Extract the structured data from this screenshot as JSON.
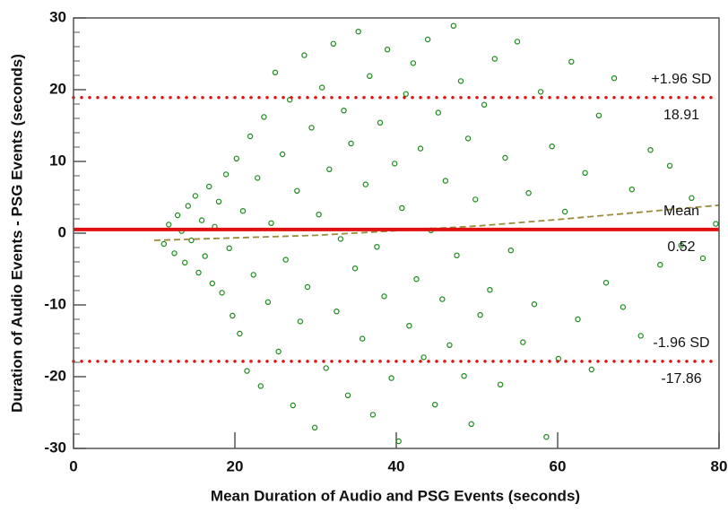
{
  "chart_data": {
    "type": "scatter",
    "xlabel": "Mean Duration of Audio and PSG Events (seconds)",
    "ylabel": "Duration of Audio Events - PSG Events (seconds)",
    "xlim": [
      0,
      80
    ],
    "ylim": [
      -30,
      30
    ],
    "xticks": [
      0,
      20,
      40,
      60,
      80
    ],
    "yticks": [
      -30,
      -20,
      -10,
      0,
      10,
      20,
      30
    ],
    "color": "#1a8a1a",
    "x": [
      11.2,
      11.8,
      12.5,
      12.9,
      13.4,
      13.8,
      14.2,
      14.6,
      15.1,
      15.5,
      15.9,
      16.3,
      16.8,
      17.2,
      17.5,
      18.0,
      18.4,
      18.9,
      19.3,
      19.7,
      20.2,
      20.6,
      21.0,
      21.5,
      21.9,
      22.3,
      22.8,
      23.2,
      23.6,
      24.1,
      24.5,
      25.0,
      25.4,
      25.9,
      26.3,
      26.8,
      27.2,
      27.7,
      28.1,
      28.6,
      29.0,
      29.5,
      29.9,
      30.4,
      30.8,
      31.3,
      31.7,
      32.2,
      32.6,
      33.1,
      33.5,
      34.0,
      34.4,
      34.9,
      35.3,
      35.8,
      36.2,
      36.7,
      37.1,
      37.6,
      38.0,
      38.5,
      38.9,
      39.4,
      39.8,
      40.3,
      40.7,
      41.2,
      41.6,
      42.1,
      42.5,
      43.0,
      43.4,
      43.9,
      44.3,
      44.8,
      45.2,
      45.7,
      46.1,
      46.6,
      47.1,
      47.5,
      48.0,
      48.4,
      48.9,
      49.3,
      49.8,
      50.4,
      50.9,
      51.6,
      52.2,
      52.9,
      53.5,
      54.2,
      55.0,
      55.7,
      56.4,
      57.1,
      57.9,
      58.6,
      59.3,
      60.1,
      60.9,
      61.7,
      62.5,
      63.4,
      64.2,
      65.1,
      66.0,
      67.0,
      68.1,
      69.2,
      70.3,
      71.5,
      72.7,
      73.9,
      75.3,
      76.6,
      78.0,
      79.6
    ],
    "values": [
      -1.5,
      1.2,
      -2.8,
      2.5,
      0.3,
      -4.1,
      3.8,
      -1.0,
      5.2,
      -5.5,
      1.8,
      -3.2,
      6.5,
      -7.0,
      0.9,
      4.4,
      -8.3,
      8.2,
      -2.1,
      -11.5,
      10.4,
      -14.0,
      3.1,
      -19.2,
      13.5,
      -5.8,
      7.7,
      -21.3,
      16.2,
      -9.6,
      1.4,
      22.4,
      -16.5,
      11.0,
      -3.7,
      18.6,
      -24.0,
      5.9,
      -12.3,
      24.8,
      -7.5,
      14.7,
      -27.1,
      2.6,
      20.3,
      -18.8,
      8.9,
      26.4,
      -10.9,
      -0.8,
      17.1,
      -22.6,
      12.5,
      -4.9,
      28.1,
      -14.7,
      6.8,
      21.9,
      -25.3,
      -1.9,
      15.4,
      -8.8,
      25.6,
      -20.2,
      9.7,
      -29.0,
      3.5,
      19.4,
      -12.9,
      23.7,
      -6.4,
      11.8,
      -17.3,
      27.0,
      0.4,
      -23.9,
      16.8,
      -9.2,
      7.3,
      -15.6,
      28.9,
      -3.1,
      21.2,
      -19.9,
      13.2,
      -26.6,
      4.7,
      -11.4,
      17.9,
      -7.9,
      24.3,
      -21.1,
      10.5,
      -2.4,
      26.7,
      -15.2,
      5.6,
      -9.9,
      19.7,
      -28.4,
      12.1,
      -17.5,
      3.0,
      23.9,
      -12.0,
      8.4,
      -19.0,
      16.4,
      -6.9,
      21.6,
      -10.3,
      6.1,
      -14.3,
      11.6,
      -4.4,
      9.4,
      -1.7,
      4.9,
      -3.5,
      1.3
    ],
    "trend": {
      "color": "#9a8a3a",
      "x": [
        10,
        30,
        50,
        60,
        70,
        80
      ],
      "values": [
        -1.0,
        -0.3,
        1.0,
        1.9,
        2.9,
        3.9
      ]
    },
    "reference_lines": [
      {
        "label": "+1.96 SD",
        "value": 18.91,
        "color": "#e01010",
        "style": "dotted"
      },
      {
        "label": "Mean",
        "value": 0.52,
        "color": "#e01010",
        "style": "solid"
      },
      {
        "label": "-1.96 SD",
        "value": -17.86,
        "color": "#e01010",
        "style": "dotted"
      }
    ]
  }
}
